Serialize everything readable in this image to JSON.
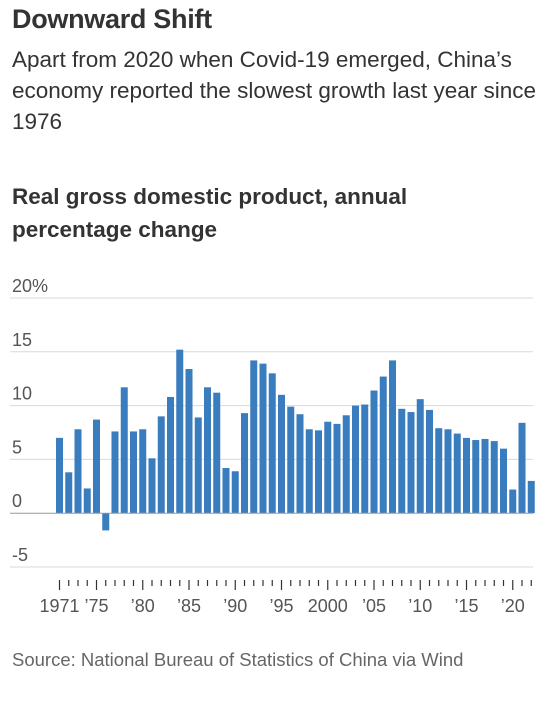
{
  "header": {
    "title": "Downward Shift",
    "subtitle": "Apart from 2020 when Covid-19 emerged, China’s economy reported the slowest growth last year since 1976"
  },
  "chart_data": {
    "type": "bar",
    "title": "Real gross domestic product, annual percentage change",
    "xlabel": "",
    "ylabel": "",
    "ylim": [
      -5,
      20
    ],
    "y_ticks": [
      -5,
      0,
      5,
      10,
      15,
      20
    ],
    "y_tick_labels": [
      "-5",
      "0",
      "5",
      "10",
      "15",
      "20%"
    ],
    "grid": true,
    "bar_color": "#3a7dbe",
    "x_tick_labels": [
      {
        "year": 1971,
        "label": "1971"
      },
      {
        "year": 1975,
        "label": "’75"
      },
      {
        "year": 1980,
        "label": "’80"
      },
      {
        "year": 1985,
        "label": "’85"
      },
      {
        "year": 1990,
        "label": "’90"
      },
      {
        "year": 1995,
        "label": "’95"
      },
      {
        "year": 2000,
        "label": "2000"
      },
      {
        "year": 2005,
        "label": "’05"
      },
      {
        "year": 2010,
        "label": "’10"
      },
      {
        "year": 2015,
        "label": "’15"
      },
      {
        "year": 2020,
        "label": "’20"
      }
    ],
    "categories": [
      1971,
      1972,
      1973,
      1974,
      1975,
      1976,
      1977,
      1978,
      1979,
      1980,
      1981,
      1982,
      1983,
      1984,
      1985,
      1986,
      1987,
      1988,
      1989,
      1990,
      1991,
      1992,
      1993,
      1994,
      1995,
      1996,
      1997,
      1998,
      1999,
      2000,
      2001,
      2002,
      2003,
      2004,
      2005,
      2006,
      2007,
      2008,
      2009,
      2010,
      2011,
      2012,
      2013,
      2014,
      2015,
      2016,
      2017,
      2018,
      2019,
      2020,
      2021,
      2022
    ],
    "values": [
      7.0,
      3.8,
      7.8,
      2.3,
      8.7,
      -1.6,
      7.6,
      11.7,
      7.6,
      7.8,
      5.1,
      9.0,
      10.8,
      15.2,
      13.4,
      8.9,
      11.7,
      11.2,
      4.2,
      3.9,
      9.3,
      14.2,
      13.9,
      13.0,
      11.0,
      9.9,
      9.2,
      7.8,
      7.7,
      8.5,
      8.3,
      9.1,
      10.0,
      10.1,
      11.4,
      12.7,
      14.2,
      9.7,
      9.4,
      10.6,
      9.6,
      7.9,
      7.8,
      7.4,
      7.0,
      6.8,
      6.9,
      6.7,
      6.0,
      2.2,
      8.4,
      3.0
    ]
  },
  "footer": {
    "source": "Source: National Bureau of Statistics of China via Wind"
  }
}
